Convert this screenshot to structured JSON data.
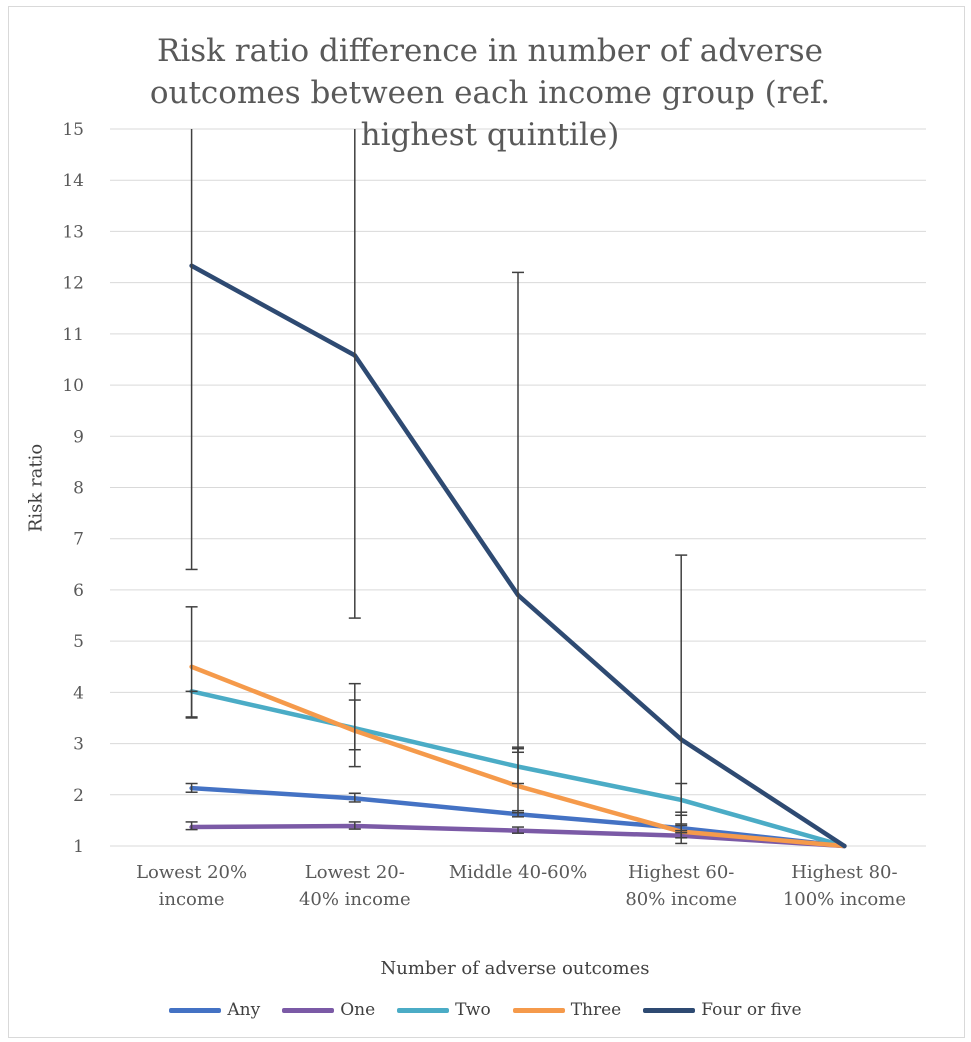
{
  "chart_data": {
    "type": "line",
    "title": "Risk ratio difference in number of adverse outcomes between each income group (ref. highest quintile)",
    "xlabel": "Number of adverse outcomes",
    "ylabel": "Risk ratio",
    "ylim": [
      1,
      15
    ],
    "yticks": [
      1,
      2,
      3,
      4,
      5,
      6,
      7,
      8,
      9,
      10,
      11,
      12,
      13,
      14,
      15
    ],
    "grid": true,
    "legend_position": "bottom",
    "categories": [
      [
        "Lowest 20%",
        "income"
      ],
      [
        "Lowest 20-",
        "40% income"
      ],
      [
        "Middle 40-60%"
      ],
      [
        "Highest 60-",
        "80% income"
      ],
      [
        "Highest 80-",
        "100% income"
      ]
    ],
    "series": [
      {
        "name": "Any",
        "color": "#4472C4",
        "values": [
          2.13,
          1.93,
          1.62,
          1.35,
          1.0
        ],
        "lower": [
          2.05,
          1.86,
          1.57,
          1.3,
          null
        ],
        "upper": [
          2.22,
          2.03,
          1.69,
          1.4,
          null
        ]
      },
      {
        "name": "One",
        "color": "#7B5AA6",
        "values": [
          1.37,
          1.39,
          1.3,
          1.2,
          1.0
        ],
        "lower": [
          1.32,
          1.33,
          1.25,
          1.16,
          null
        ],
        "upper": [
          1.47,
          1.47,
          1.37,
          1.26,
          null
        ]
      },
      {
        "name": "Two",
        "color": "#4BACC6",
        "values": [
          4.02,
          3.3,
          2.55,
          1.9,
          1.0
        ],
        "lower": [
          3.5,
          2.88,
          2.22,
          1.6,
          null
        ],
        "upper": [
          4.02,
          3.85,
          2.93,
          2.22,
          null
        ]
      },
      {
        "name": "Three",
        "color": "#F59A4B",
        "values": [
          4.5,
          3.25,
          2.17,
          1.28,
          1.0
        ],
        "lower": [
          3.52,
          2.55,
          1.65,
          1.05,
          null
        ],
        "upper": [
          5.67,
          4.17,
          2.9,
          1.66,
          null
        ]
      },
      {
        "name": "Four or five",
        "color": "#2E4A72",
        "values": [
          12.33,
          10.58,
          5.9,
          3.08,
          1.0
        ],
        "lower": [
          6.4,
          5.45,
          2.83,
          1.43,
          null
        ],
        "upper": [
          15.0,
          15.0,
          12.2,
          6.68,
          null
        ]
      }
    ]
  }
}
